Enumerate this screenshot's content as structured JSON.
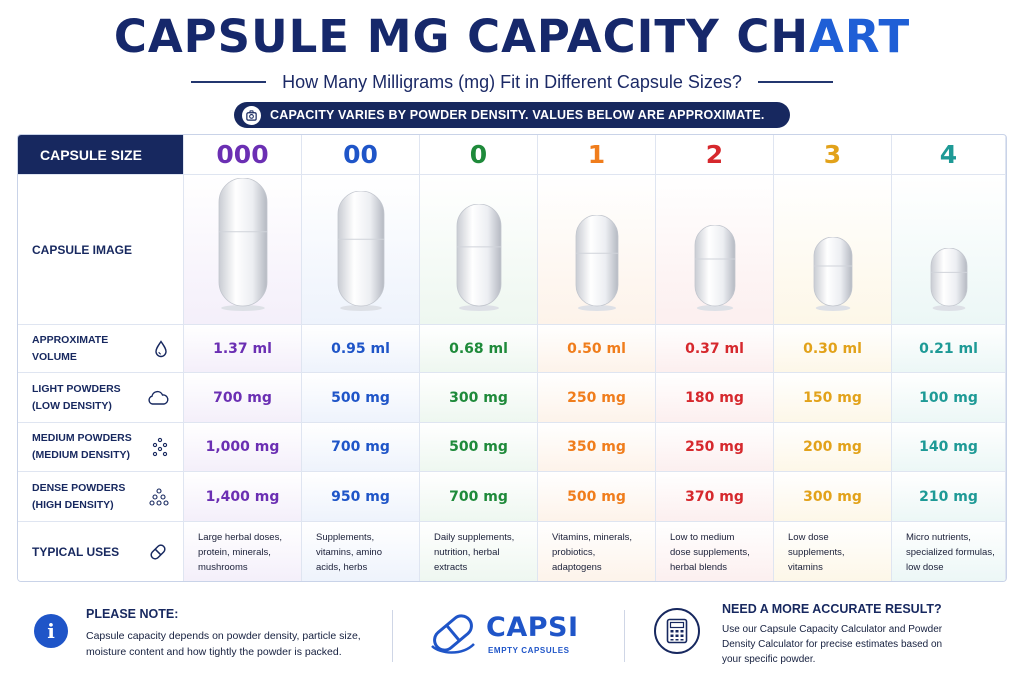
{
  "header": {
    "title_main": "CAPSULE MG CAPACITY CH",
    "title_accent": "ART",
    "subtitle": "How Many Milligrams (mg) Fit in Different Capsule Sizes?",
    "banner": "CAPACITY VARIES BY POWDER DENSITY. VALUES BELOW ARE APPROXIMATE.",
    "banner_icon": "scale-icon"
  },
  "table": {
    "size_header": "CAPSULE SIZE",
    "row_labels": {
      "image": "CAPSULE IMAGE",
      "volume": [
        "APPROXIMATE",
        "VOLUME"
      ],
      "light": [
        "LIGHT POWDERS",
        "(LOW DENSITY)"
      ],
      "medium": [
        "MEDIUM POWDERS",
        "(MEDIUM DENSITY)"
      ],
      "dense": [
        "DENSE POWDERS",
        "(HIGH DENSITY)"
      ],
      "uses": "TYPICAL USES"
    },
    "row_icons": {
      "volume": "droplet-icon",
      "light": "cloud-icon",
      "medium": "particles-icon",
      "dense": "dense-particles-icon",
      "uses": "pill-icon"
    },
    "sizes": [
      {
        "size": "000",
        "color": "#6b2fb3",
        "tint": "#f4effa",
        "capsule_scale": 1.0,
        "volume": "1.37 ml",
        "light": "700 mg",
        "medium": "1,000 mg",
        "dense": "1,400 mg",
        "uses": [
          "Large herbal doses,",
          "protein, minerals,",
          "mushrooms"
        ]
      },
      {
        "size": "00",
        "color": "#1f55c8",
        "tint": "#eef3fc",
        "capsule_scale": 0.9,
        "volume": "0.95 ml",
        "light": "500 mg",
        "medium": "700 mg",
        "dense": "950 mg",
        "uses": [
          "Supplements,",
          "vitamins, amino",
          "acids, herbs"
        ]
      },
      {
        "size": "0",
        "color": "#1e8a3a",
        "tint": "#eef7f0",
        "capsule_scale": 0.8,
        "volume": "0.68 ml",
        "light": "300 mg",
        "medium": "500 mg",
        "dense": "700 mg",
        "uses": [
          "Daily supplements,",
          "nutrition, herbal",
          "extracts"
        ]
      },
      {
        "size": "1",
        "color": "#f07d1c",
        "tint": "#fdf3ea",
        "capsule_scale": 0.71,
        "volume": "0.50 ml",
        "light": "250 mg",
        "medium": "350 mg",
        "dense": "500 mg",
        "uses": [
          "Vitamins, minerals,",
          "probiotics,",
          "adaptogens"
        ]
      },
      {
        "size": "2",
        "color": "#d6282d",
        "tint": "#fcefef",
        "capsule_scale": 0.63,
        "volume": "0.37 ml",
        "light": "180 mg",
        "medium": "250 mg",
        "dense": "370 mg",
        "uses": [
          "Low to medium",
          "dose supplements,",
          "herbal blends"
        ]
      },
      {
        "size": "3",
        "color": "#e2a21a",
        "tint": "#fdf7e8",
        "capsule_scale": 0.54,
        "volume": "0.30 ml",
        "light": "150 mg",
        "medium": "200 mg",
        "dense": "300 mg",
        "uses": [
          "Low dose",
          "supplements,",
          "vitamins"
        ]
      },
      {
        "size": "4",
        "color": "#1e9a96",
        "tint": "#ecf7f6",
        "capsule_scale": 0.45,
        "volume": "0.21 ml",
        "light": "100 mg",
        "medium": "140 mg",
        "dense": "210 mg",
        "uses": [
          "Micro nutrients,",
          "specialized formulas,",
          "low dose"
        ]
      }
    ]
  },
  "footer": {
    "note_icon": "info-icon",
    "note_title": "PLEASE NOTE:",
    "note_text": "Capsule capacity depends on powder density, particle size, moisture content and how tightly the powder is packed.",
    "logo_name": "CAPSI",
    "logo_sub": "EMPTY CAPSULES",
    "calc_icon": "calculator-icon",
    "cta_title": "NEED A MORE ACCURATE RESULT?",
    "cta_text": "Use our Capsule Capacity Calculator and Powder Density Calculator for precise estimates based on your specific powder."
  }
}
